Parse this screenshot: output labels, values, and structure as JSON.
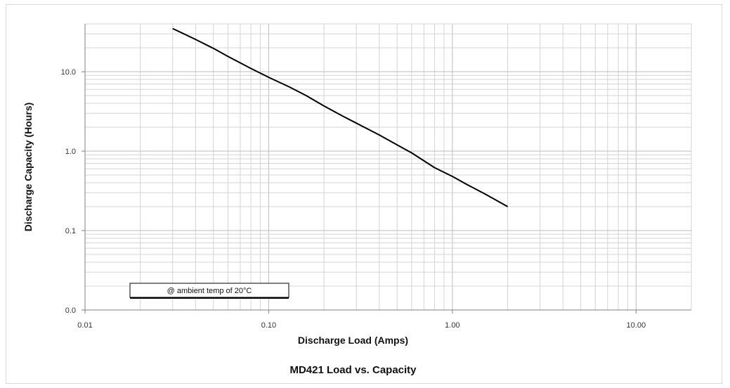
{
  "chart_data": {
    "type": "line",
    "title": "MD421 Load  vs. Capacity",
    "xlabel": "Discharge Load (Amps)",
    "ylabel": "Discharge Capacity (Hours)",
    "x_scale": "log",
    "y_scale": "log",
    "xlim": [
      0.01,
      20
    ],
    "ylim": [
      0.01,
      40
    ],
    "x_ticks": [
      {
        "value": 0.01,
        "label": "0.01"
      },
      {
        "value": 0.1,
        "label": "0.10"
      },
      {
        "value": 1,
        "label": "1.00"
      },
      {
        "value": 10,
        "label": "10.00"
      }
    ],
    "y_ticks": [
      {
        "value": 0.01,
        "label": "0.0"
      },
      {
        "value": 0.1,
        "label": "0.1"
      },
      {
        "value": 1,
        "label": "1.0"
      },
      {
        "value": 10,
        "label": "10.0"
      }
    ],
    "grid": true,
    "annotation": "@ ambient temp of 20°C",
    "series": [
      {
        "color": "#000000",
        "x": [
          0.03,
          0.04,
          0.05,
          0.06,
          0.08,
          0.1,
          0.13,
          0.16,
          0.2,
          0.25,
          0.3,
          0.4,
          0.5,
          0.6,
          0.8,
          1.0,
          1.2,
          1.5,
          2.0
        ],
        "y": [
          35,
          25.5,
          19.7,
          15.6,
          11.0,
          8.5,
          6.4,
          5.0,
          3.7,
          2.8,
          2.25,
          1.6,
          1.2,
          0.95,
          0.62,
          0.48,
          0.38,
          0.29,
          0.2
        ]
      }
    ]
  }
}
